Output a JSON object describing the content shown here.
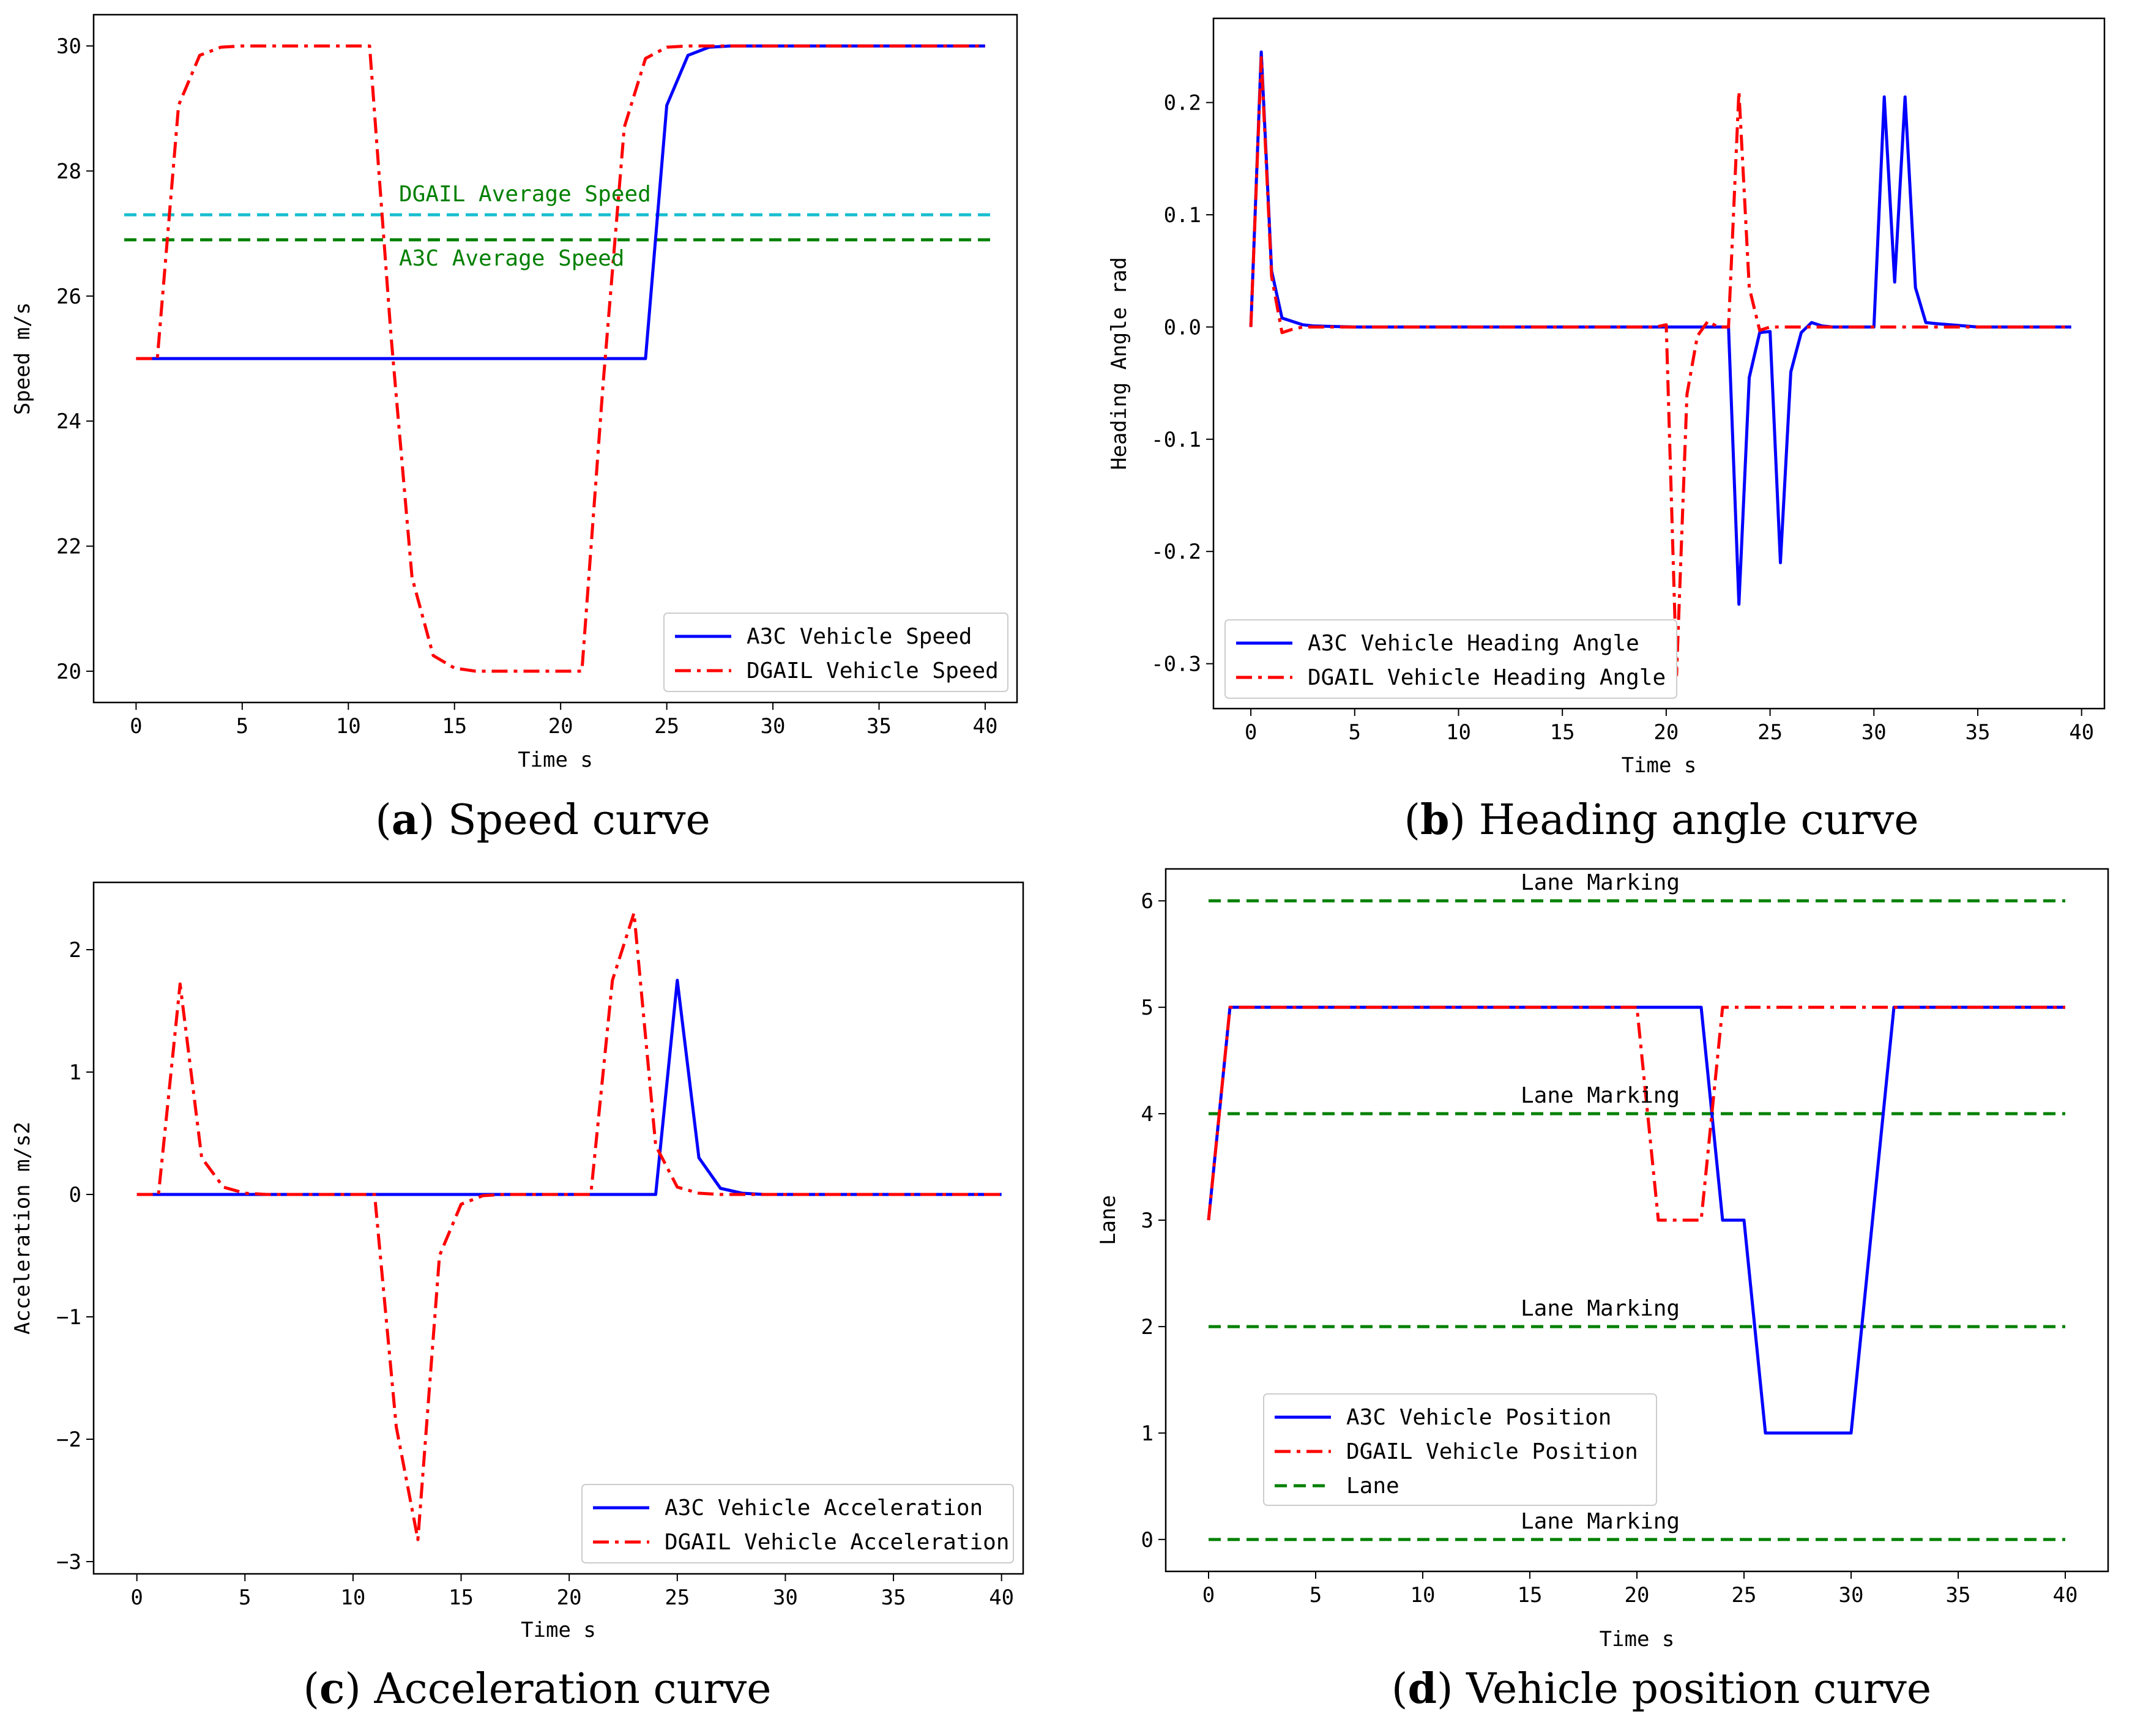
{
  "chart_data": [
    {
      "id": "a",
      "type": "line",
      "caption": {
        "letter": "a",
        "text": "Speed curve"
      },
      "xlabel": "Time s",
      "ylabel": "Speed m/s",
      "xlim": [
        -2,
        41.5
      ],
      "ylim": [
        19.5,
        30.5
      ],
      "xticks": [
        0,
        5,
        10,
        15,
        20,
        25,
        30,
        35,
        40
      ],
      "yticks": [
        20,
        22,
        24,
        26,
        28,
        30
      ],
      "legend": "bottom-right",
      "series": [
        {
          "name": "A3C Vehicle Speed",
          "color": "#0000ff",
          "style": "solid",
          "x": [
            0,
            1,
            2,
            3,
            4,
            5,
            10,
            15,
            20,
            23,
            24,
            25,
            26,
            27,
            28,
            30,
            35,
            40
          ],
          "y": [
            25,
            25,
            25,
            25,
            25,
            25,
            25,
            25,
            25,
            25,
            25,
            29.05,
            29.85,
            29.98,
            30,
            30,
            30,
            30
          ]
        },
        {
          "name": "DGAIL Vehicle Speed",
          "color": "#ff0000",
          "style": "dashdot",
          "x": [
            0,
            1,
            2,
            3,
            4,
            5,
            10,
            11,
            12,
            13,
            14,
            15,
            16,
            17,
            20,
            21,
            22,
            23,
            24,
            25,
            26,
            30,
            35,
            40
          ],
          "y": [
            25,
            25,
            29.05,
            29.85,
            29.98,
            30,
            30,
            30,
            25.4,
            21.5,
            20.25,
            20.05,
            20,
            20,
            20,
            20,
            24.6,
            28.7,
            29.8,
            29.98,
            30,
            30,
            30,
            30
          ]
        }
      ],
      "hlines": [
        {
          "y": 27.3,
          "color": "#17becf",
          "style": "dashed",
          "label": "DGAIL Average Speed"
        },
        {
          "y": 26.9,
          "color": "#008000",
          "style": "dashed",
          "label": "A3C Average Speed"
        }
      ]
    },
    {
      "id": "b",
      "type": "line",
      "caption": {
        "letter": "b",
        "text": "Heading angle curve"
      },
      "xlabel": "Time s",
      "ylabel": "Heading Angle rad",
      "xlim": [
        -1.8,
        41.1
      ],
      "ylim": [
        -0.34,
        0.275
      ],
      "xticks": [
        0,
        5,
        10,
        15,
        20,
        25,
        30,
        35,
        40
      ],
      "yticks": [
        -0.3,
        -0.2,
        -0.1,
        0.0,
        0.1,
        0.2
      ],
      "ytick_labels": [
        "-0.3",
        "-0.2",
        "-0.1",
        "0.0",
        "0.1",
        "0.2"
      ],
      "legend": "bottom-left",
      "series": [
        {
          "name": "A3C Vehicle Heading Angle",
          "color": "#0000ff",
          "style": "solid",
          "x": [
            0,
            0.5,
            1,
            1.5,
            2,
            2.5,
            3,
            5,
            10,
            15,
            20,
            21,
            22,
            23,
            23.5,
            24,
            24.5,
            25,
            25.5,
            26,
            26.5,
            27,
            27.5,
            28,
            29,
            30,
            30.5,
            31,
            31.5,
            32,
            32.5,
            33,
            35,
            39.5
          ],
          "y": [
            0,
            0.245,
            0.05,
            0.008,
            0.005,
            0.002,
            0.001,
            0,
            0,
            0,
            0,
            0,
            0,
            0,
            -0.247,
            -0.045,
            -0.005,
            -0.004,
            -0.21,
            -0.04,
            -0.005,
            0.004,
            0.001,
            0,
            0,
            0,
            0.205,
            0.04,
            0.205,
            0.035,
            0.004,
            0.003,
            0,
            0
          ]
        },
        {
          "name": "DGAIL Vehicle Heading Angle",
          "color": "#ff0000",
          "style": "dashdot",
          "x": [
            0,
            0.5,
            1,
            1.5,
            2,
            2.5,
            3,
            5,
            10,
            15,
            19.5,
            20,
            20.5,
            21,
            21.5,
            22,
            22.5,
            23,
            23.5,
            24,
            24.5,
            25,
            26,
            28,
            30,
            35,
            39.5
          ],
          "y": [
            0,
            0.24,
            0.045,
            -0.005,
            -0.002,
            0,
            0,
            0,
            0,
            0,
            0,
            0.002,
            -0.31,
            -0.06,
            -0.008,
            0.005,
            0,
            0,
            0.21,
            0.035,
            -0.003,
            0,
            0,
            0,
            0,
            0,
            0
          ]
        }
      ]
    },
    {
      "id": "c",
      "type": "line",
      "caption": {
        "letter": "c",
        "text": "Acceleration curve"
      },
      "xlabel": "Time s",
      "ylabel": "Acceleration m/s2",
      "xlim": [
        -2,
        41
      ],
      "ylim": [
        -3.1,
        2.55
      ],
      "xticks": [
        0,
        5,
        10,
        15,
        20,
        25,
        30,
        35,
        40
      ],
      "yticks": [
        -3,
        -2,
        -1,
        0,
        1,
        2
      ],
      "ytick_labels": [
        "−3",
        "−2",
        "−1",
        "0",
        "1",
        "2"
      ],
      "legend": "bottom-right",
      "series": [
        {
          "name": "A3C Vehicle Acceleration",
          "color": "#0000ff",
          "style": "solid",
          "x": [
            0,
            5,
            10,
            15,
            20,
            24,
            25,
            26,
            27,
            28,
            29,
            30,
            35,
            40
          ],
          "y": [
            0,
            0,
            0,
            0,
            0,
            0,
            1.75,
            0.3,
            0.05,
            0.01,
            0,
            0,
            0,
            0
          ]
        },
        {
          "name": "DGAIL Vehicle Acceleration",
          "color": "#ff0000",
          "style": "dashdot",
          "x": [
            0,
            1,
            2,
            3,
            4,
            5,
            6,
            10,
            11,
            12,
            13,
            14,
            15,
            16,
            17,
            20,
            21,
            22,
            23,
            24,
            25,
            26,
            27,
            28,
            30,
            35,
            40
          ],
          "y": [
            0,
            0,
            1.72,
            0.3,
            0.06,
            0.01,
            0,
            0,
            0,
            -1.9,
            -2.82,
            -0.5,
            -0.08,
            -0.01,
            0,
            0,
            0,
            1.75,
            2.3,
            0.4,
            0.06,
            0.01,
            0,
            0,
            0,
            0,
            0
          ]
        }
      ]
    },
    {
      "id": "d",
      "type": "line",
      "caption": {
        "letter": "d",
        "text": "Vehicle position curve"
      },
      "xlabel": "Time s",
      "ylabel": "Lane",
      "xlim": [
        -2,
        42
      ],
      "ylim": [
        -0.3,
        6.3
      ],
      "xticks": [
        0,
        5,
        10,
        15,
        20,
        25,
        30,
        35,
        40
      ],
      "yticks": [
        0,
        1,
        2,
        3,
        4,
        5,
        6
      ],
      "legend": "center-left",
      "series": [
        {
          "name": "A3C Vehicle Position",
          "color": "#0000ff",
          "style": "solid",
          "x": [
            0,
            1,
            2,
            5,
            10,
            15,
            20,
            23,
            24,
            25,
            26,
            27,
            30,
            32,
            33,
            35,
            40
          ],
          "y": [
            3,
            5,
            5,
            5,
            5,
            5,
            5,
            5,
            3,
            3,
            1,
            1,
            1,
            5,
            5,
            5,
            5
          ]
        },
        {
          "name": "DGAIL Vehicle Position",
          "color": "#ff0000",
          "style": "dashdot",
          "x": [
            0,
            1,
            2,
            5,
            10,
            15,
            20,
            21,
            22,
            23,
            24,
            25,
            30,
            35,
            40
          ],
          "y": [
            3,
            5,
            5,
            5,
            5,
            5,
            5,
            3,
            3,
            3,
            5,
            5,
            5,
            5,
            5
          ]
        },
        {
          "name": "Lane",
          "color": "#008000",
          "style": "dashed",
          "legend_only": true
        }
      ],
      "hlines": [
        {
          "y": 6,
          "color": "#008000",
          "style": "dashed",
          "label": "Lane Marking"
        },
        {
          "y": 4,
          "color": "#008000",
          "style": "dashed",
          "label": "Lane Marking"
        },
        {
          "y": 2,
          "color": "#008000",
          "style": "dashed",
          "label": "Lane Marking"
        },
        {
          "y": 0,
          "color": "#008000",
          "style": "dashed",
          "label": "Lane Marking"
        }
      ]
    }
  ]
}
